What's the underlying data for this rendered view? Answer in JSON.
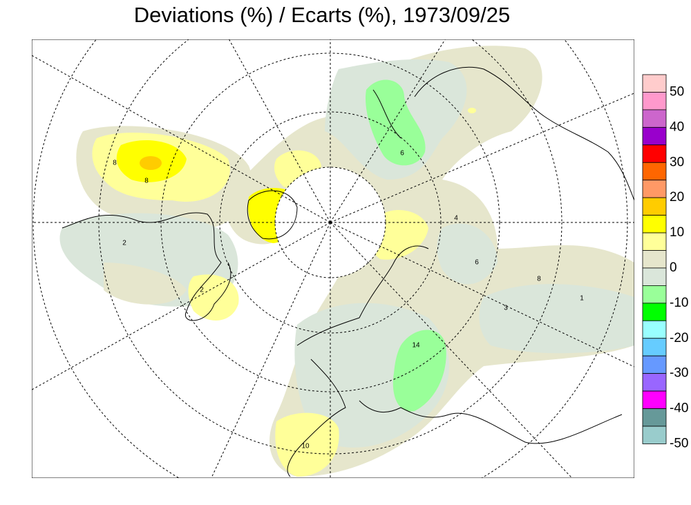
{
  "title": "Deviations (%) / Ecarts (%), 1973/09/25",
  "legend": {
    "colors": [
      "#ffcccc",
      "#ff99cc",
      "#cc66cc",
      "#9900cc",
      "#ff0000",
      "#ff6600",
      "#ff9966",
      "#ffcc00",
      "#ffff00",
      "#ffff99",
      "#e6e6cc",
      "#dae6da",
      "#99ff99",
      "#00ff00",
      "#99ffff",
      "#66ccff",
      "#6699ff",
      "#9966ff",
      "#ff00ff",
      "#669999",
      "#99cccc"
    ],
    "ticks": [
      50,
      40,
      30,
      20,
      10,
      0,
      -10,
      -20,
      -30,
      -40,
      -50
    ]
  },
  "contour_labels": [
    8,
    8,
    2,
    2,
    14,
    6,
    10,
    6,
    3,
    8,
    1,
    4
  ]
}
